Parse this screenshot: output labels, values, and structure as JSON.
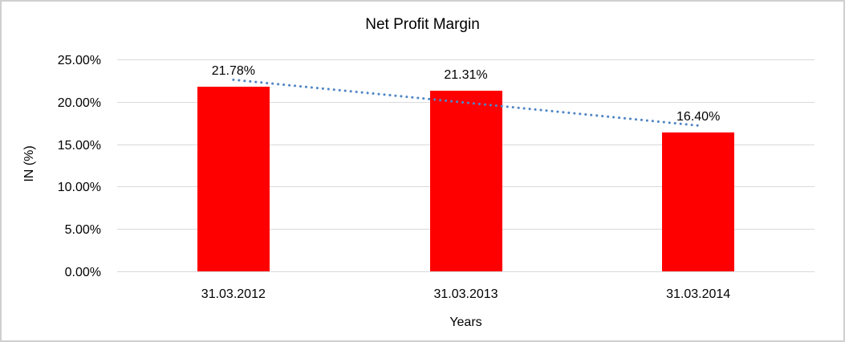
{
  "chart_data": {
    "type": "bar",
    "title": "Net Profit Margin",
    "xlabel": "Years",
    "ylabel": "IN (%)",
    "categories": [
      "31.03.2012",
      "31.03.2013",
      "31.03.2014"
    ],
    "values": [
      21.78,
      21.31,
      16.4
    ],
    "data_labels": [
      "21.78%",
      "21.31%",
      "16.40%"
    ],
    "y_ticks": [
      {
        "value": 0,
        "label": "0.00%"
      },
      {
        "value": 5,
        "label": "5.00%"
      },
      {
        "value": 10,
        "label": "10.00%"
      },
      {
        "value": 15,
        "label": "15.00%"
      },
      {
        "value": 20,
        "label": "20.00%"
      },
      {
        "value": 25,
        "label": "25.00%"
      }
    ],
    "ylim": [
      0,
      25
    ],
    "grid": true,
    "legend": false,
    "bar_color": "#ff0000",
    "gridline_color": "#d9d9d9",
    "text_color": "#000000",
    "frame_border_color": "#cfcfcf",
    "trendline": {
      "type": "linear",
      "style": "dotted",
      "color": "#4f86c6",
      "start_value": 22.6,
      "end_value": 17.2
    }
  }
}
